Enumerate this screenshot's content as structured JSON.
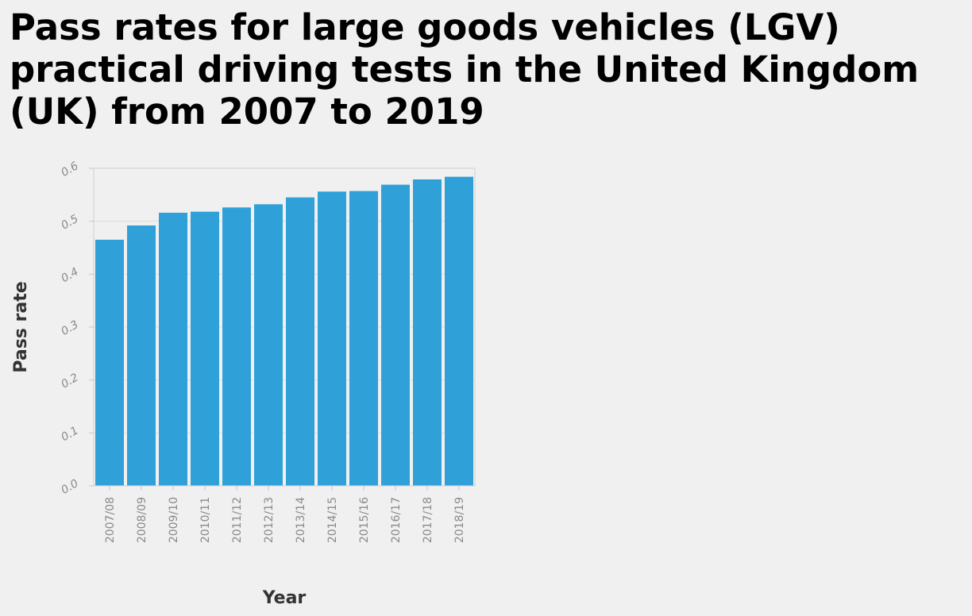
{
  "chart_data": {
    "type": "bar",
    "title": "Pass rates for large goods vehicles (LGV) practical driving tests in the United Kingdom (UK) from 2007 to 2019",
    "xlabel": "Year",
    "ylabel": "Pass rate",
    "categories": [
      "2007/08",
      "2008/09",
      "2009/10",
      "2010/11",
      "2011/12",
      "2012/13",
      "2013/14",
      "2014/15",
      "2015/16",
      "2016/17",
      "2017/18",
      "2018/19"
    ],
    "values": [
      0.465,
      0.492,
      0.516,
      0.518,
      0.526,
      0.532,
      0.545,
      0.556,
      0.557,
      0.569,
      0.579,
      0.584
    ],
    "ylim": [
      0,
      0.6
    ],
    "yticks": [
      "0.0",
      "0.1",
      "0.2",
      "0.3",
      "0.4",
      "0.5",
      "0.6"
    ],
    "grid": true,
    "bar_color": "#2fa1d8",
    "background_color": "#f0f0f0"
  }
}
